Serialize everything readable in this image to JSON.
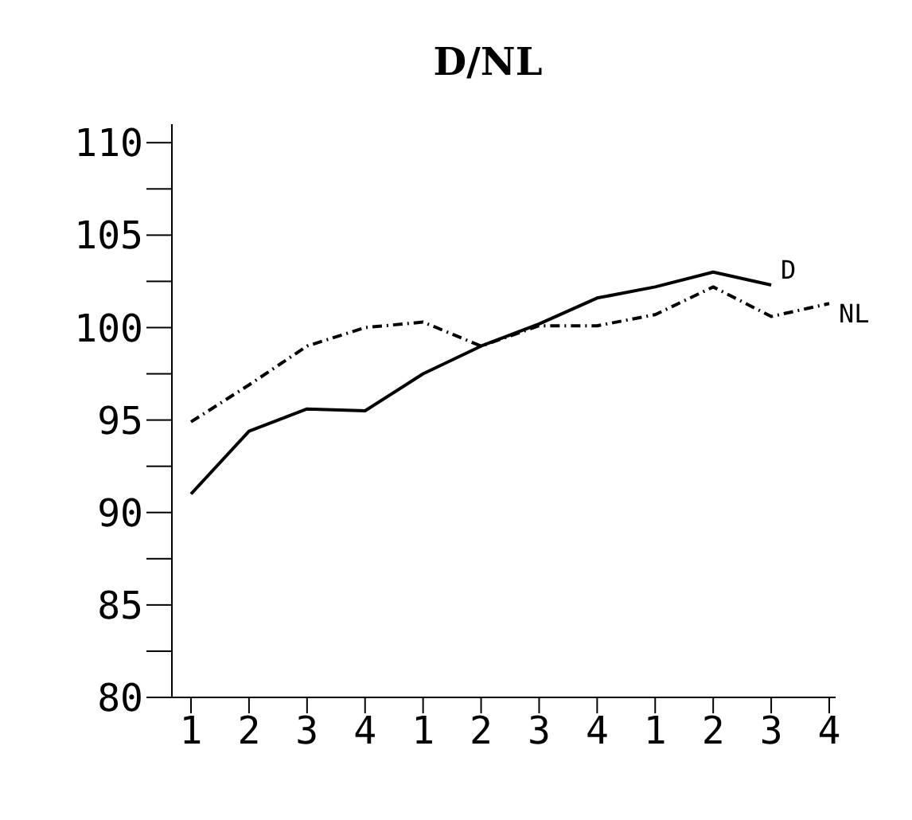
{
  "chart_data": {
    "type": "line",
    "title": "D/NL",
    "categories": [
      "1",
      "2",
      "3",
      "4",
      "1",
      "2",
      "3",
      "4",
      "1",
      "2",
      "3",
      "4"
    ],
    "series": [
      {
        "name": "D",
        "color": "#000000",
        "line_style": "solid",
        "values": [
          91.0,
          94.4,
          95.6,
          95.5,
          97.5,
          99.0,
          100.2,
          101.6,
          102.2,
          103.0,
          102.3,
          null
        ]
      },
      {
        "name": "NL",
        "color": "#000000",
        "line_style": "dashed",
        "values": [
          94.9,
          96.9,
          99.0,
          100.0,
          100.3,
          99.0,
          100.1,
          100.1,
          100.7,
          102.2,
          100.6,
          101.3
        ]
      }
    ],
    "ylim": [
      80,
      111
    ],
    "yticks": [
      80,
      {
        "value": 82.5,
        "label": null
      },
      85,
      {
        "value": 87.5,
        "label": null
      },
      90,
      {
        "value": 92.5,
        "label": null
      },
      95,
      {
        "value": 97.5,
        "label": null
      },
      100,
      {
        "value": 102.5,
        "label": null
      },
      105,
      {
        "value": 107.5,
        "label": null
      },
      110
    ],
    "marker": "none"
  }
}
